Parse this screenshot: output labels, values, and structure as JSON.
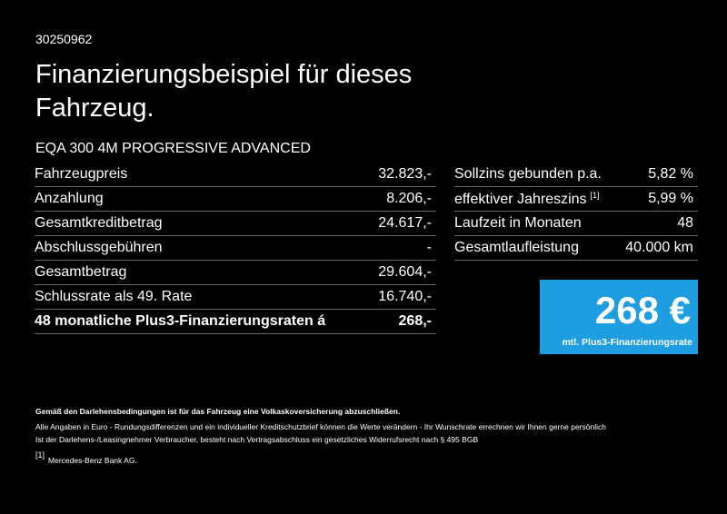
{
  "header": {
    "id": "30250962",
    "title": "Finanzierungsbeispiel für dieses Fahrzeug.",
    "model": "EQA 300 4M PROGRESSIVE ADVANCED"
  },
  "left_table": {
    "rows": [
      [
        "Fahrzeugpreis",
        "32.823,-"
      ],
      [
        "Anzahlung",
        "8.206,-"
      ],
      [
        "Gesamtkreditbetrag",
        "24.617,-"
      ],
      [
        "Abschlussgebühren",
        "-"
      ],
      [
        "Gesamtbetrag",
        "29.604,-"
      ],
      [
        "Schlussrate als 49. Rate",
        "16.740,-"
      ],
      [
        "48 monatliche Plus3-Finanzierungsraten á",
        "268,-"
      ]
    ]
  },
  "right_table": {
    "rows": [
      {
        "label": "Sollzins gebunden p.a.",
        "value": "5,82 %"
      },
      {
        "label": "effektiver Jahreszins",
        "note": "[1]",
        "value": "5,99 %"
      },
      {
        "label": "Laufzeit in Monaten",
        "value": "48"
      },
      {
        "label": "Gesamtlaufleistung",
        "value": "40.000 km"
      }
    ]
  },
  "rate_box": {
    "amount": "268 €",
    "label": "mtl. Plus3-Finanzierungsrate"
  },
  "footer": {
    "notice": "Gemäß den Darlehensbedingungen ist für das Fahrzeug eine Volkaskoversicherung abzuschließen.",
    "lines": [
      "Alle Angaben in Euro - Rundungsdifferenzen und ein individueller Kreditschutzbrief können die Werte verändern - Ihr Wunschrate errechnen wir Ihnen gerne persönlich",
      "Ist der Darlehens-/Leasingnehmer Verbraucher, besteht nach Vertragsabschluss ein gesetzliches Widerrufsrecht nach § 495 BGB"
    ],
    "footnote": {
      "marker": "[1]",
      "text": "Mercedes-Benz Bank AG."
    }
  }
}
